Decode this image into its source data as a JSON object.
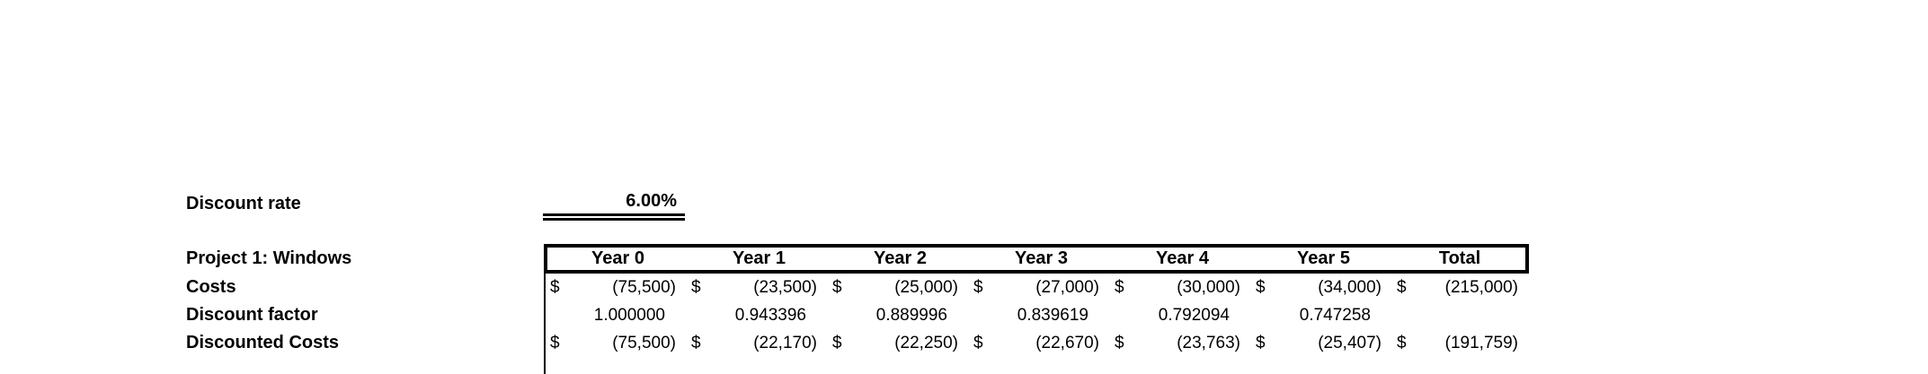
{
  "sheet": {
    "discount_rate": {
      "label": "Discount rate",
      "value": "6.00%"
    }
  },
  "table": {
    "title": "Project 1: Windows",
    "columns": [
      "Year 0",
      "Year 1",
      "Year 2",
      "Year 3",
      "Year 4",
      "Year 5",
      "Total"
    ],
    "rows": [
      {
        "label": "Costs",
        "cells": [
          {
            "prefix": "$",
            "value": "(75,500)"
          },
          {
            "prefix": "$",
            "value": "(23,500)"
          },
          {
            "prefix": "$",
            "value": "(25,000)"
          },
          {
            "prefix": "$",
            "value": "(27,000)"
          },
          {
            "prefix": "$",
            "value": "(30,000)"
          },
          {
            "prefix": "$",
            "value": "(34,000)"
          },
          {
            "prefix": "$",
            "value": "(215,000)"
          }
        ]
      },
      {
        "label": "Discount factor",
        "cells": [
          {
            "prefix": "",
            "value": "1.000000"
          },
          {
            "prefix": "",
            "value": "0.943396"
          },
          {
            "prefix": "",
            "value": "0.889996"
          },
          {
            "prefix": "",
            "value": "0.839619"
          },
          {
            "prefix": "",
            "value": "0.792094"
          },
          {
            "prefix": "",
            "value": "0.747258"
          },
          {
            "prefix": "",
            "value": ""
          }
        ]
      },
      {
        "label": "Discounted Costs",
        "cells": [
          {
            "prefix": "$",
            "value": "(75,500)"
          },
          {
            "prefix": "$",
            "value": "(22,170)"
          },
          {
            "prefix": "$",
            "value": "(22,250)"
          },
          {
            "prefix": "$",
            "value": "(22,670)"
          },
          {
            "prefix": "$",
            "value": "(23,763)"
          },
          {
            "prefix": "$",
            "value": "(25,407)"
          },
          {
            "prefix": "$",
            "value": "(191,759)"
          }
        ]
      }
    ]
  }
}
